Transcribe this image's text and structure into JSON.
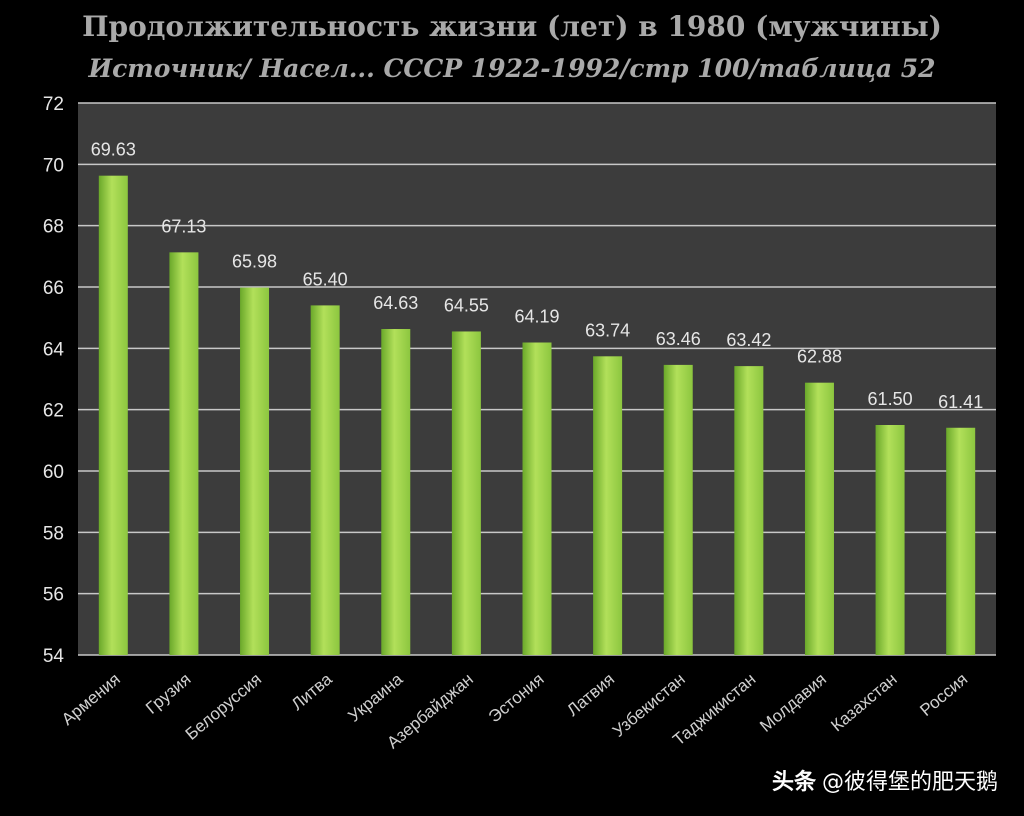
{
  "chart_data": {
    "type": "bar",
    "title": "Продолжительность жизни (лет) в 1980 (мужчины)",
    "subtitle": "Источник/ Насел... СССР 1922-1992/стр 100/таблица 52",
    "xlabel": "",
    "ylabel": "",
    "ylim": [
      54,
      72
    ],
    "yticks": [
      54,
      56,
      58,
      60,
      62,
      64,
      66,
      68,
      70,
      72
    ],
    "grid": true,
    "categories": [
      "Армения",
      "Грузия",
      "Белоруссия",
      "Литва",
      "Украина",
      "Азербайджан",
      "Эстония",
      "Латвия",
      "Узбекистан",
      "Таджикистан",
      "Молдавия",
      "Казахстан",
      "Россия"
    ],
    "values": [
      69.63,
      67.13,
      65.98,
      65.4,
      64.63,
      64.55,
      64.19,
      63.74,
      63.46,
      63.42,
      62.88,
      61.5,
      61.41
    ],
    "value_labels": [
      "69.63",
      "67.13",
      "65.98",
      "65.40",
      "64.63",
      "64.55",
      "64.19",
      "63.74",
      "63.46",
      "63.42",
      "62.88",
      "61.50",
      "61.41"
    ],
    "colors": {
      "bar": "#8cc63f",
      "bar_light": "#b2e05a",
      "bar_dark": "#6aa82a",
      "plot_bg": "#3c3c3c",
      "grid": "#c8c8c8",
      "text": "#e6e6e6"
    }
  },
  "watermark": {
    "brand": "头条",
    "author": "@彼得堡的肥天鹅"
  }
}
